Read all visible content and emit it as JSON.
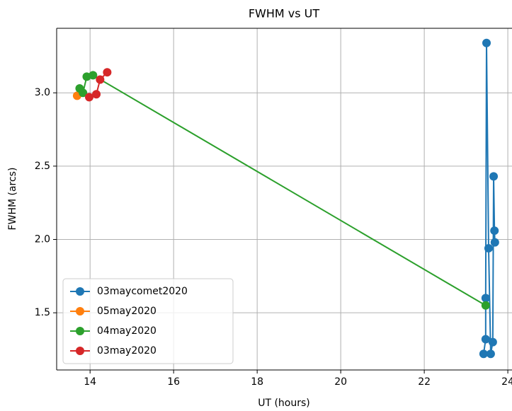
{
  "chart_data": {
    "type": "line",
    "title": "FWHM vs UT",
    "xlabel": "UT (hours)",
    "ylabel": "FWHM (arcs)",
    "xlim": [
      13.2,
      24.1
    ],
    "ylim": [
      1.11,
      3.44
    ],
    "xticks": [
      14,
      16,
      18,
      20,
      22,
      24
    ],
    "yticks": [
      1.5,
      {
        "value": 2.0,
        "label": "2.0"
      },
      2.5,
      {
        "value": 3.0,
        "label": "3.0"
      }
    ],
    "grid": true,
    "legend": "lower left",
    "series": [
      {
        "name": "03maycomet2020",
        "color": "#1f77b4",
        "x": [
          23.42,
          23.47,
          23.47,
          23.49,
          23.54,
          23.59,
          23.64,
          23.66,
          23.68,
          23.69
        ],
        "values": [
          1.22,
          1.32,
          1.6,
          3.34,
          1.94,
          1.22,
          1.3,
          2.43,
          2.06,
          1.98
        ]
      },
      {
        "name": "05may2020",
        "color": "#ff7f0e",
        "x": [
          13.69
        ],
        "values": [
          2.98
        ]
      },
      {
        "name": "04may2020",
        "color": "#2ca02c",
        "x": [
          13.75,
          13.83,
          13.92,
          14.07,
          23.47
        ],
        "values": [
          3.03,
          3.0,
          3.11,
          3.12,
          1.55
        ]
      },
      {
        "name": "03may2020",
        "color": "#d62728",
        "x": [
          13.98,
          14.15,
          14.24,
          14.41
        ],
        "values": [
          2.97,
          2.99,
          3.09,
          3.14
        ]
      }
    ]
  }
}
